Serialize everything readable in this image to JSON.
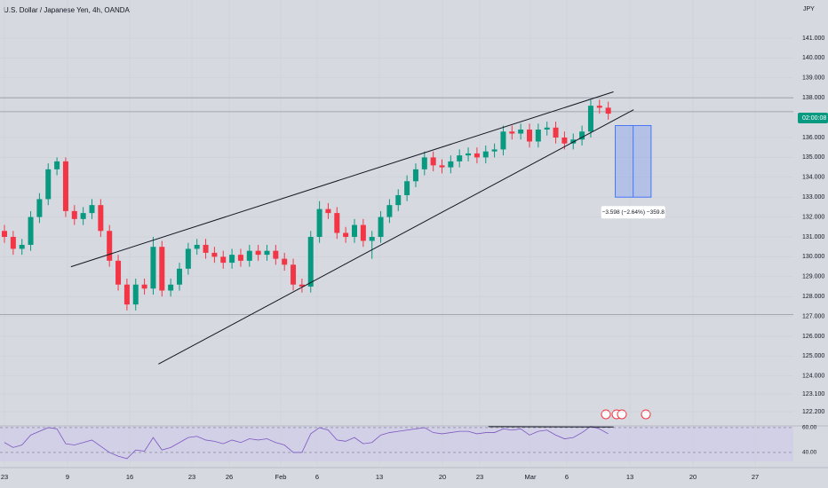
{
  "chart_data": {
    "type": "candlestick",
    "title": "U.S. Dollar / Japanese Yen, 4h, OANDA",
    "currency": "JPY",
    "countdown": "02:00:08",
    "up_color": "#089981",
    "down_color": "#f23645",
    "ylim": [
      121.49,
      142.92
    ],
    "yticks": [
      {
        "value": 141,
        "label": "141.000"
      },
      {
        "value": 140,
        "label": "140.000"
      },
      {
        "value": 139,
        "label": "139.000"
      },
      {
        "value": 138,
        "label": "138.000"
      },
      {
        "value": 136,
        "label": "136.000"
      },
      {
        "value": 135,
        "label": "135.000"
      },
      {
        "value": 134,
        "label": "134.000"
      },
      {
        "value": 133,
        "label": "133.000"
      },
      {
        "value": 132,
        "label": "132.000"
      },
      {
        "value": 131,
        "label": "131.000"
      },
      {
        "value": 130,
        "label": "130.000"
      },
      {
        "value": 129,
        "label": "129.000"
      },
      {
        "value": 128,
        "label": "128.000"
      },
      {
        "value": 127,
        "label": "127.000"
      },
      {
        "value": 126,
        "label": "126.000"
      },
      {
        "value": 125,
        "label": "125.000"
      },
      {
        "value": 124,
        "label": "124.000"
      },
      {
        "value": 123.1,
        "label": "123.100"
      },
      {
        "value": 122.2,
        "label": "122.200"
      }
    ],
    "x_labels": [
      "23",
      "9",
      "16",
      "23",
      "26",
      "Feb",
      "6",
      "13",
      "20",
      "23",
      "Mar",
      "6",
      "13",
      "20",
      "27"
    ],
    "open": [
      131.3,
      131.0,
      130.4,
      130.6,
      132.0,
      132.9,
      134.4,
      134.8,
      132.3,
      131.9,
      132.2,
      132.6,
      131.3,
      129.8,
      128.6,
      127.6,
      128.6,
      128.4,
      130.5,
      128.3,
      128.6,
      129.4,
      130.4,
      130.6,
      130.2,
      130.0,
      129.7,
      130.1,
      129.8,
      130.3,
      130.1,
      130.3,
      129.9,
      129.6,
      128.6,
      128.5,
      131.0,
      132.4,
      132.2,
      131.2,
      131.0,
      131.6,
      130.8,
      131.0,
      132.0,
      132.6,
      133.1,
      133.8,
      134.4,
      135.0,
      134.6,
      134.5,
      134.8,
      135.1,
      135.2,
      135.0,
      135.3,
      135.4,
      136.3,
      136.2,
      136.4,
      135.8,
      136.4,
      136.5,
      136.0,
      135.7,
      135.9,
      136.3,
      137.6,
      137.5
    ],
    "high": [
      131.6,
      131.3,
      130.9,
      132.3,
      133.2,
      134.7,
      135.0,
      135.0,
      132.6,
      132.5,
      132.9,
      132.9,
      131.6,
      130.1,
      128.9,
      128.9,
      128.9,
      131.0,
      130.8,
      128.9,
      129.7,
      130.7,
      130.9,
      130.9,
      130.5,
      130.3,
      130.4,
      130.4,
      130.6,
      130.6,
      130.6,
      130.6,
      130.2,
      129.9,
      128.9,
      131.3,
      132.8,
      132.7,
      132.5,
      131.5,
      131.9,
      131.9,
      131.3,
      132.3,
      132.9,
      133.4,
      134.1,
      134.7,
      135.3,
      135.3,
      134.9,
      135.1,
      135.4,
      135.5,
      135.5,
      135.6,
      135.7,
      136.6,
      136.6,
      136.7,
      136.7,
      136.7,
      136.8,
      136.8,
      136.3,
      136.2,
      136.6,
      137.9,
      137.9,
      137.8
    ],
    "low": [
      130.7,
      130.1,
      130.1,
      130.3,
      131.7,
      132.6,
      134.1,
      132.0,
      131.6,
      131.6,
      131.9,
      131.0,
      129.5,
      128.3,
      127.3,
      127.3,
      128.1,
      128.1,
      128.0,
      128.0,
      128.3,
      129.1,
      130.1,
      129.9,
      129.7,
      129.4,
      129.4,
      129.5,
      129.5,
      129.8,
      129.8,
      129.6,
      129.3,
      128.3,
      128.2,
      128.2,
      130.7,
      131.9,
      130.9,
      130.7,
      130.7,
      130.5,
      129.9,
      130.7,
      131.7,
      132.3,
      132.8,
      133.5,
      134.1,
      134.3,
      134.2,
      134.2,
      134.5,
      134.8,
      134.7,
      134.7,
      135.0,
      135.1,
      135.9,
      135.9,
      135.5,
      135.5,
      136.1,
      135.7,
      135.4,
      135.4,
      135.6,
      136.0,
      137.2,
      136.9
    ],
    "close": [
      131.0,
      130.4,
      130.6,
      132.0,
      132.9,
      134.4,
      134.8,
      132.3,
      131.9,
      132.2,
      132.6,
      131.3,
      129.8,
      128.6,
      127.6,
      128.6,
      128.4,
      130.5,
      128.3,
      128.6,
      129.4,
      130.4,
      130.6,
      130.2,
      130.0,
      129.7,
      130.1,
      129.8,
      130.3,
      130.1,
      130.3,
      129.9,
      129.6,
      128.6,
      128.5,
      131.0,
      132.4,
      132.2,
      131.2,
      131.0,
      131.6,
      130.8,
      131.0,
      132.0,
      132.6,
      133.1,
      133.8,
      134.4,
      135.0,
      134.6,
      134.5,
      134.8,
      135.1,
      135.2,
      135.0,
      135.3,
      135.4,
      136.3,
      136.2,
      136.4,
      135.8,
      136.4,
      136.5,
      136.0,
      135.7,
      135.9,
      136.3,
      137.6,
      137.5,
      137.2
    ],
    "hlines": [
      138.0,
      137.3,
      127.1
    ],
    "trendlines": [
      [
        [
          7.6,
          129.5
        ],
        [
          69.6,
          138.3
        ]
      ],
      [
        [
          17.6,
          124.6
        ],
        [
          71.9,
          137.4
        ]
      ]
    ],
    "measure": {
      "x": [
        69.8,
        73.9
      ],
      "prices": [
        136.6,
        133.0
      ],
      "label": "−3.598 (−2.64%) −359.8"
    },
    "rsi": [
      48,
      44,
      46,
      54,
      57,
      60,
      59,
      47,
      46,
      48,
      50,
      45,
      40,
      37,
      35,
      42,
      41,
      52,
      42,
      44,
      48,
      52,
      53,
      50,
      49,
      47,
      50,
      48,
      51,
      50,
      51,
      48,
      46,
      40,
      40,
      55,
      60,
      58,
      50,
      49,
      52,
      47,
      48,
      54,
      56,
      57,
      58,
      59,
      60,
      56,
      55,
      56,
      57,
      57,
      55,
      56,
      56,
      59,
      58,
      59,
      54,
      57,
      58,
      54,
      51,
      52,
      56,
      61,
      59,
      55
    ],
    "rsi_ylim": [
      33.5,
      61.4
    ],
    "rsi_ticks": [
      {
        "value": 60,
        "label": "60.00"
      },
      {
        "value": 40,
        "label": "40.00"
      }
    ],
    "rsi_lines": [
      [
        [
          55.3,
          60.8
        ],
        [
          69.6,
          60.5
        ]
      ]
    ]
  }
}
